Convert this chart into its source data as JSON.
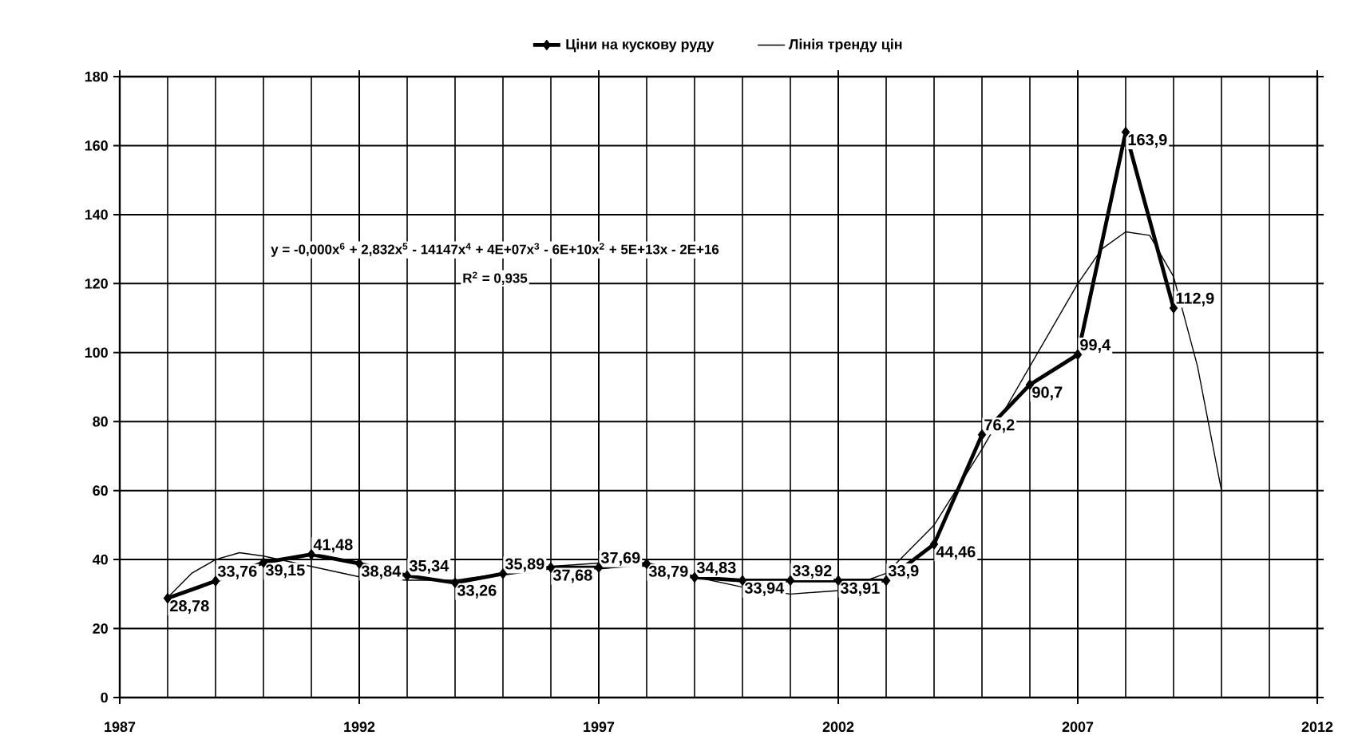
{
  "chart_data": {
    "type": "line",
    "x": [
      1988,
      1989,
      1990,
      1991,
      1992,
      1993,
      1994,
      1995,
      1996,
      1997,
      1998,
      1999,
      2000,
      2001,
      2002,
      2003,
      2004,
      2005,
      2006,
      2007,
      2008,
      2009
    ],
    "series": [
      {
        "name": "Ціни на кускову руду",
        "color": "#000000",
        "marker": "diamond",
        "values": [
          28.78,
          33.76,
          39.15,
          41.48,
          38.84,
          35.34,
          33.26,
          35.89,
          37.68,
          37.69,
          38.79,
          34.83,
          33.94,
          33.92,
          33.91,
          33.9,
          44.46,
          76.2,
          90.7,
          99.4,
          163.9,
          112.9
        ],
        "value_labels": [
          "28,78",
          "33,76",
          "39,15",
          "41,48",
          "38,84",
          "35,34",
          "33,26",
          "35,89",
          "37,68",
          "37,69",
          "38,79",
          "34,83",
          "33,94",
          "33,92",
          "33,91",
          "33,9",
          "44,46",
          "76,2",
          "90,7",
          "99,4",
          "163,9",
          "112,9"
        ]
      },
      {
        "name": "Лінія тренду цін",
        "type": "line",
        "color": "#000000",
        "marker": "none",
        "x": [
          1988,
          1988.5,
          1989,
          1989.5,
          1990,
          1991,
          1992,
          1993,
          1994,
          1995,
          1996,
          1997,
          1998,
          1999,
          2000,
          2001,
          2002,
          2003,
          2004,
          2005,
          2006,
          2007,
          2007.5,
          2008,
          2008.5,
          2009,
          2009.5,
          2010
        ],
        "values": [
          29,
          36,
          40,
          42,
          41,
          38,
          35,
          34,
          34,
          36,
          38,
          39,
          38,
          35,
          32,
          30,
          31,
          36,
          50,
          72,
          96,
          120,
          130,
          135,
          134,
          122,
          96,
          60
        ]
      }
    ],
    "annotations": [
      "y = -0,000x$^{6}$ + 2,832x$^{5}$ - 14147x$^{4}$ + 4E+07x$^{3}$ - 6E+10x$^{2}$ + 5E+13x - 2E+16",
      "R$^{2}$ = 0,935"
    ],
    "xlim": [
      1987,
      2012
    ],
    "xticks": [
      1987,
      1992,
      1997,
      2002,
      2007,
      2012
    ],
    "ylim": [
      0,
      180
    ],
    "yticks": [
      0,
      20,
      40,
      60,
      80,
      100,
      120,
      140,
      160,
      180
    ],
    "grid": true,
    "legend": "top"
  }
}
